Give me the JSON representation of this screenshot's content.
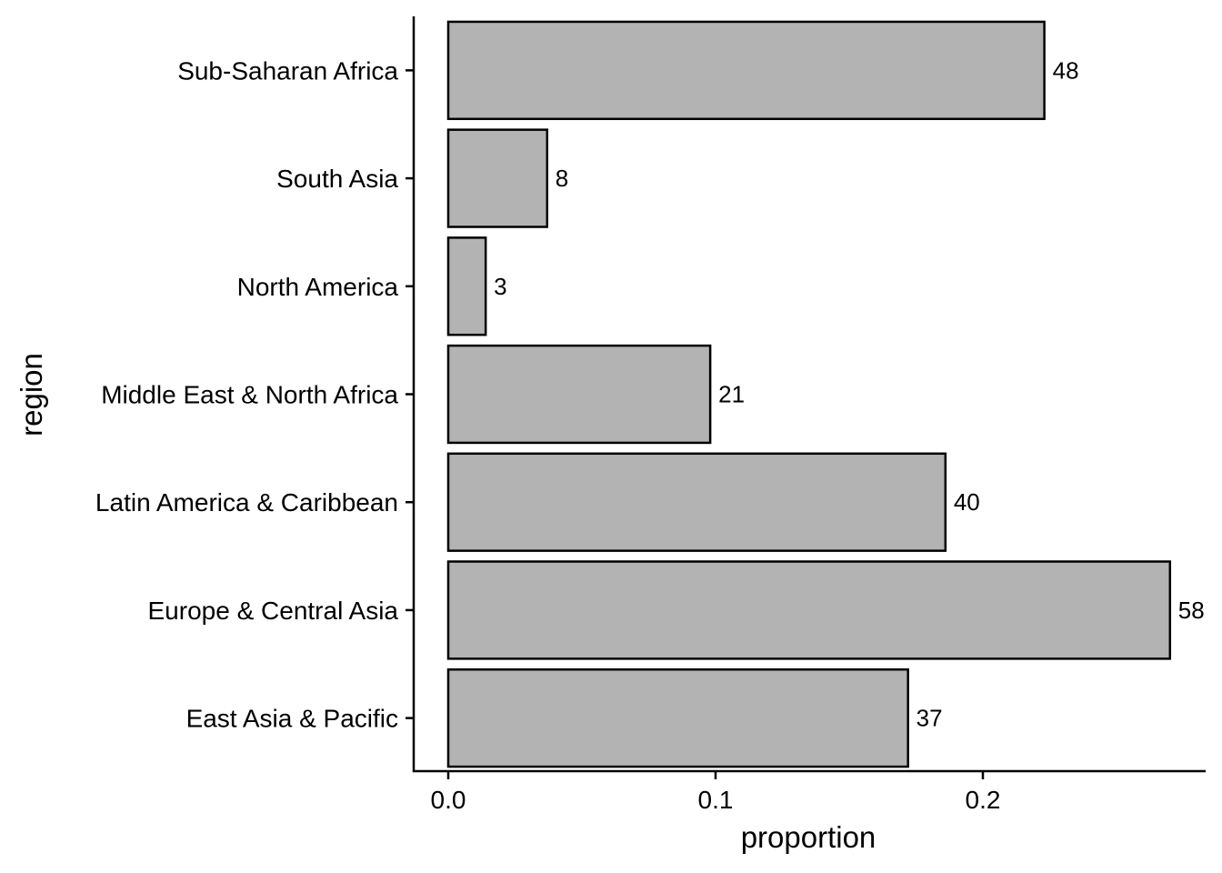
{
  "chart_data": {
    "type": "bar",
    "orientation": "horizontal",
    "categories": [
      "East Asia & Pacific",
      "Europe & Central Asia",
      "Latin America & Caribbean",
      "Middle East & North Africa",
      "North America",
      "South Asia",
      "Sub-Saharan Africa"
    ],
    "values": [
      0.172,
      0.27,
      0.186,
      0.098,
      0.014,
      0.037,
      0.223
    ],
    "labels": [
      "37",
      "58",
      "40",
      "21",
      "3",
      "8",
      "48"
    ],
    "xlabel": "proportion",
    "ylabel": "region",
    "xlim": [
      -0.013,
      0.284
    ],
    "xticks": [
      0.0,
      0.1,
      0.2
    ],
    "xtick_labels": [
      "0.0",
      "0.1",
      "0.2"
    ],
    "grid": false,
    "colors": {
      "bar_fill": "#b3b3b3",
      "bar_stroke": "#000000",
      "axis": "#000000"
    }
  }
}
